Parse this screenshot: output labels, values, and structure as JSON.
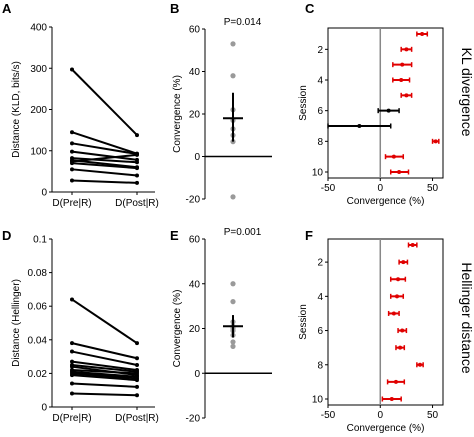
{
  "panel_labels": {
    "A": "A",
    "B": "B",
    "C": "C",
    "D": "D",
    "E": "E",
    "F": "F"
  },
  "side_labels": {
    "top": "KL divergence",
    "bottom": "Hellinger distance"
  },
  "chart_data": [
    {
      "panel": "A",
      "type": "line",
      "ylabel": "Distance (KLD, bits/s)",
      "categories": [
        "D(Pre|R)",
        "D(Post|R)"
      ],
      "ylim": [
        0,
        400
      ],
      "yticks": [
        "0",
        "100",
        "200",
        "300",
        "400"
      ],
      "pairs": [
        [
          297,
          138
        ],
        [
          145,
          93
        ],
        [
          118,
          92
        ],
        [
          98,
          78
        ],
        [
          82,
          72
        ],
        [
          77,
          60
        ],
        [
          74,
          90
        ],
        [
          70,
          58
        ],
        [
          55,
          40
        ],
        [
          28,
          22
        ]
      ]
    },
    {
      "panel": "B",
      "type": "scatter",
      "annotation": "P=0.014",
      "ylabel": "Convergence (%)",
      "ylim": [
        -20,
        60
      ],
      "yticks": [
        "-20",
        "0",
        "20",
        "40",
        "60"
      ],
      "points": [
        53,
        38,
        22,
        17,
        13,
        10,
        7,
        -19
      ],
      "mean": 18,
      "sem": [
        7,
        30
      ]
    },
    {
      "panel": "C",
      "type": "scatter",
      "xlabel": "Convergence (%)",
      "ylabel": "Session",
      "xlim": [
        -50,
        60
      ],
      "xticks": [
        "-50",
        "0",
        "50"
      ],
      "yticks": [
        "2",
        "4",
        "6",
        "8",
        "10"
      ],
      "sessions": [
        {
          "session": 1,
          "mean": 40,
          "lo": 35,
          "hi": 45,
          "color": "#e00000"
        },
        {
          "session": 2,
          "mean": 25,
          "lo": 20,
          "hi": 30,
          "color": "#e00000"
        },
        {
          "session": 3,
          "mean": 21,
          "lo": 12,
          "hi": 30,
          "color": "#e00000"
        },
        {
          "session": 4,
          "mean": 20,
          "lo": 12,
          "hi": 28,
          "color": "#e00000"
        },
        {
          "session": 5,
          "mean": 25,
          "lo": 20,
          "hi": 30,
          "color": "#e00000"
        },
        {
          "session": 6,
          "mean": 8,
          "lo": -2,
          "hi": 18,
          "color": "#000000"
        },
        {
          "session": 7,
          "mean": -20,
          "lo": -50,
          "hi": 10,
          "color": "#000000"
        },
        {
          "session": 8,
          "mean": 53,
          "lo": 50,
          "hi": 56,
          "color": "#e00000"
        },
        {
          "session": 9,
          "mean": 13,
          "lo": 5,
          "hi": 22,
          "color": "#e00000"
        },
        {
          "session": 10,
          "mean": 18,
          "lo": 10,
          "hi": 27,
          "color": "#e00000"
        }
      ]
    },
    {
      "panel": "D",
      "type": "line",
      "ylabel": "Distance (Hellinger)",
      "categories": [
        "D(Pre|R)",
        "D(Post|R)"
      ],
      "ylim": [
        0,
        0.1
      ],
      "yticks": [
        "0",
        "0.02",
        "0.04",
        "0.06",
        "0.08",
        "0.1"
      ],
      "pairs": [
        [
          0.064,
          0.038
        ],
        [
          0.038,
          0.029
        ],
        [
          0.033,
          0.025
        ],
        [
          0.027,
          0.022
        ],
        [
          0.025,
          0.021
        ],
        [
          0.024,
          0.019
        ],
        [
          0.022,
          0.02
        ],
        [
          0.021,
          0.018
        ],
        [
          0.02,
          0.017
        ],
        [
          0.019,
          0.016
        ],
        [
          0.014,
          0.012
        ],
        [
          0.008,
          0.007
        ]
      ]
    },
    {
      "panel": "E",
      "type": "scatter",
      "annotation": "P=0.001",
      "ylabel": "Convergence (%)",
      "ylim": [
        -20,
        60
      ],
      "yticks": [
        "-20",
        "0",
        "20",
        "40",
        "60"
      ],
      "points": [
        40,
        32,
        23,
        21,
        20,
        19,
        17,
        14,
        12
      ],
      "mean": 21,
      "sem": [
        16,
        26
      ]
    },
    {
      "panel": "F",
      "type": "scatter",
      "xlabel": "Convergence (%)",
      "ylabel": "Session",
      "xlim": [
        -50,
        60
      ],
      "xticks": [
        "-50",
        "0",
        "50"
      ],
      "yticks": [
        "2",
        "4",
        "6",
        "8",
        "10"
      ],
      "sessions": [
        {
          "session": 1,
          "mean": 31,
          "lo": 27,
          "hi": 35,
          "color": "#e00000"
        },
        {
          "session": 2,
          "mean": 22,
          "lo": 18,
          "hi": 26,
          "color": "#e00000"
        },
        {
          "session": 3,
          "mean": 17,
          "lo": 10,
          "hi": 24,
          "color": "#e00000"
        },
        {
          "session": 4,
          "mean": 16,
          "lo": 10,
          "hi": 22,
          "color": "#e00000"
        },
        {
          "session": 5,
          "mean": 13,
          "lo": 8,
          "hi": 18,
          "color": "#e00000"
        },
        {
          "session": 6,
          "mean": 21,
          "lo": 17,
          "hi": 25,
          "color": "#e00000"
        },
        {
          "session": 7,
          "mean": 19,
          "lo": 15,
          "hi": 23,
          "color": "#e00000"
        },
        {
          "session": 8,
          "mean": 38,
          "lo": 35,
          "hi": 41,
          "color": "#e00000"
        },
        {
          "session": 9,
          "mean": 15,
          "lo": 7,
          "hi": 23,
          "color": "#e00000"
        },
        {
          "session": 10,
          "mean": 11,
          "lo": 2,
          "hi": 20,
          "color": "#e00000"
        }
      ]
    }
  ]
}
